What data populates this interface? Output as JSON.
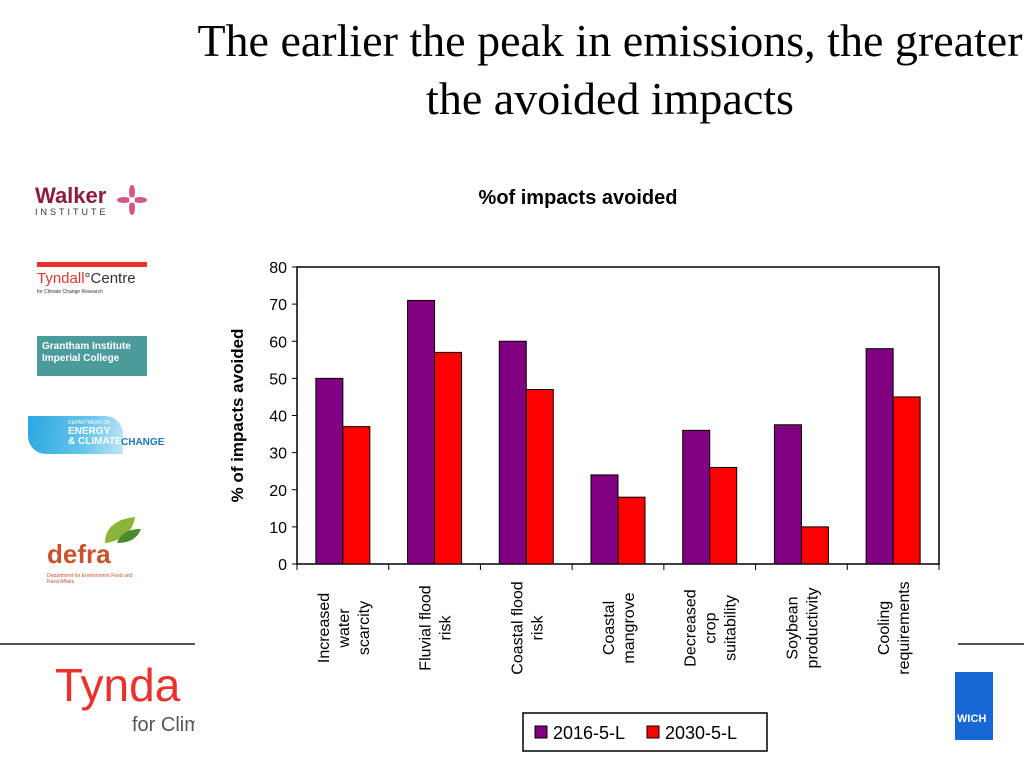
{
  "slide": {
    "title": "The earlier the peak in emissions, the greater the avoided impacts"
  },
  "logos": {
    "walker": {
      "name": "Walker",
      "sub": "INSTITUTE"
    },
    "tyndall_small": {
      "name": "Tyndall",
      "name2": "Centre",
      "sub": "for Climate Change Research"
    },
    "grantham": {
      "line1": "Grantham Institute",
      "line2": "Imperial College"
    },
    "decc": {
      "line1": "DEPARTMENT OF",
      "line2": "ENERGY",
      "line3": "& CLIMATE",
      "line4": "CHANGE"
    },
    "defra": {
      "name": "defra",
      "sub": "Department for Environment Food and Rural Affairs"
    },
    "tyndall_big": {
      "name": "Tynda",
      "sub": "for Clim"
    },
    "uea": {
      "text": "WICH"
    }
  },
  "chart_data": {
    "type": "bar",
    "title": "%of impacts avoided",
    "ylabel": "% of impacts avoided",
    "xlabel": "",
    "ylim": [
      0,
      80
    ],
    "yticks": [
      0,
      10,
      20,
      30,
      40,
      50,
      60,
      70,
      80
    ],
    "grid": false,
    "legend_position": "bottom",
    "categories": [
      [
        "Increased",
        "water",
        "scarcity"
      ],
      [
        "Fluvial flood",
        "risk"
      ],
      [
        "Coastal flood",
        "risk"
      ],
      [
        "Coastal",
        "mangrove"
      ],
      [
        "Decreased",
        "crop",
        "suitability"
      ],
      [
        "Soybean",
        "productivity"
      ],
      [
        "Cooling",
        "requirements"
      ]
    ],
    "series": [
      {
        "name": "2016-5-L",
        "color": "#800080",
        "values": [
          50,
          71,
          60,
          24,
          36,
          37.5,
          58
        ]
      },
      {
        "name": "2030-5-L",
        "color": "#ff0000",
        "values": [
          37,
          57,
          47,
          18,
          26,
          10,
          45
        ]
      }
    ]
  }
}
